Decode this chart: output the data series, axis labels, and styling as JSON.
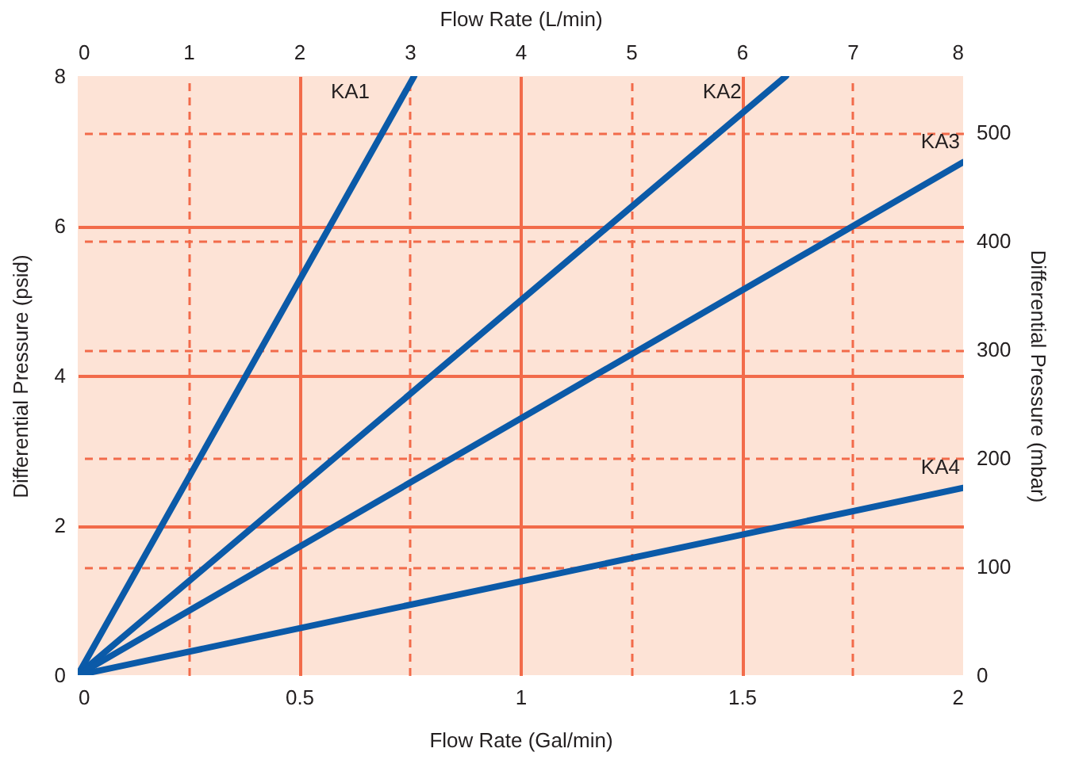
{
  "chart_data": {
    "type": "line",
    "xlabel": "Flow Rate (Gal/min)",
    "x2label": "Flow Rate (L/min)",
    "ylabel": "Differential Pressure (psid)",
    "y2label": "Differential Pressure (mbar)",
    "xlim": [
      0,
      2
    ],
    "xticks": [
      0,
      {
        "value": 0.5,
        "label": "0.5"
      },
      1,
      {
        "value": 1.5,
        "label": "1.5"
      },
      2
    ],
    "ylim": [
      0,
      8
    ],
    "yticks": [
      0,
      2,
      4,
      6,
      8
    ],
    "x2lim": [
      0,
      8
    ],
    "x2ticks": [
      0,
      1,
      2,
      3,
      4,
      5,
      6,
      7,
      8
    ],
    "y2lim": [
      0,
      552
    ],
    "y2ticks": [
      0,
      100,
      200,
      300,
      400,
      500
    ],
    "grid": true,
    "legend": false,
    "marker": "none",
    "line_style": "solid",
    "series": [
      {
        "name": "KA1",
        "color": "#0b5aa8",
        "x": [
          0,
          0.76
        ],
        "values": [
          0,
          8
        ]
      },
      {
        "name": "KA2",
        "color": "#0b5aa8",
        "x": [
          0,
          1.6
        ],
        "values": [
          0,
          8
        ]
      },
      {
        "name": "KA3",
        "color": "#0b5aa8",
        "x": [
          0,
          2
        ],
        "values": [
          0,
          6.85
        ]
      },
      {
        "name": "KA4",
        "color": "#0b5aa8",
        "x": [
          0,
          2
        ],
        "values": [
          0,
          2.5
        ]
      }
    ]
  }
}
